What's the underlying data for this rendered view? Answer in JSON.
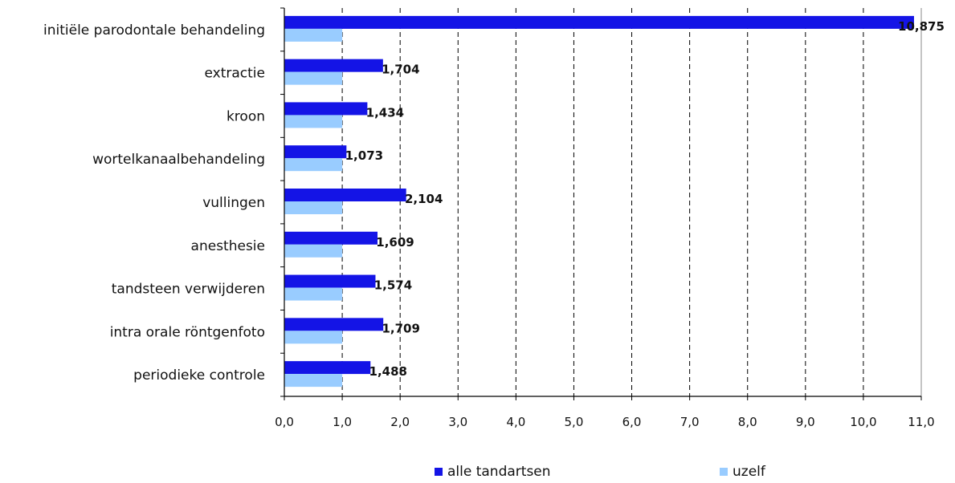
{
  "chart_data": {
    "type": "bar",
    "orientation": "horizontal",
    "categories": [
      "initiële parodontale behandeling",
      "extractie",
      "kroon",
      "wortelkanaalbehandeling",
      "vullingen",
      "anesthesie",
      "tandsteen verwijderen",
      "intra orale röntgenfoto",
      "periodieke controle"
    ],
    "series": [
      {
        "name": "alle tandartsen",
        "color": "#1414e6",
        "values": [
          10.875,
          1.704,
          1.434,
          1.073,
          2.104,
          1.609,
          1.574,
          1.709,
          1.488
        ],
        "labels": [
          "10,875",
          "1,704",
          "1,434",
          "1,073",
          "2,104",
          "1,609",
          "1,574",
          "1,709",
          "1,488"
        ]
      },
      {
        "name": "uzelf",
        "color": "#99ccff",
        "values": [
          1,
          1,
          1,
          1,
          1,
          1,
          1,
          1,
          1
        ]
      }
    ],
    "xlim": [
      0,
      11
    ],
    "xticks": [
      0,
      1,
      2,
      3,
      4,
      5,
      6,
      7,
      8,
      9,
      10,
      11
    ],
    "xtick_labels": [
      "0,0",
      "1,0",
      "2,0",
      "3,0",
      "4,0",
      "5,0",
      "6,0",
      "7,0",
      "8,0",
      "9,0",
      "10,0",
      "11,0"
    ],
    "grid": "vertical dashed",
    "legend_position": "bottom"
  }
}
